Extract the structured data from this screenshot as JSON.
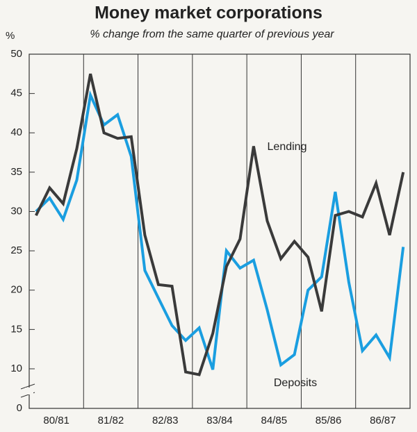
{
  "chart_data": {
    "type": "line",
    "title": "Money market corporations",
    "subtitle": "% change from the same quarter of previous year",
    "y_label": "%",
    "categories": [
      null,
      "80/81",
      null,
      null,
      null,
      "81/82",
      null,
      null,
      null,
      "82/83",
      null,
      null,
      null,
      "83/84",
      null,
      null,
      null,
      "84/85",
      null,
      null,
      null,
      "85/86",
      null,
      null,
      null,
      "86/87",
      null,
      null
    ],
    "series": [
      {
        "name": "Lending",
        "color": "#3a3a3a",
        "values": [
          29.5,
          33,
          31,
          38,
          47.5,
          40,
          39.3,
          39.5,
          27,
          20.7,
          20.5,
          9.2,
          8.5,
          14.5,
          23,
          26.5,
          38.3,
          28.8,
          24,
          26.2,
          24.2,
          17.3,
          29.5,
          30,
          29.3,
          33.6,
          27,
          35
        ]
      },
      {
        "name": "Deposits",
        "color": "#1a9ee0",
        "values": [
          30,
          31.7,
          29,
          34,
          44.8,
          41,
          42.3,
          37,
          22.5,
          19,
          15.5,
          13.6,
          15.2,
          9.8,
          25,
          22.8,
          23.8,
          17.5,
          10.5,
          11.8,
          20,
          21.7,
          32.5,
          21,
          12.3,
          14.3,
          11.4,
          25.5
        ]
      }
    ],
    "ylim": [
      0,
      50
    ],
    "y_break": [
      0,
      10
    ],
    "yticks": [
      0,
      10,
      15,
      20,
      25,
      30,
      35,
      40,
      45,
      50
    ]
  }
}
